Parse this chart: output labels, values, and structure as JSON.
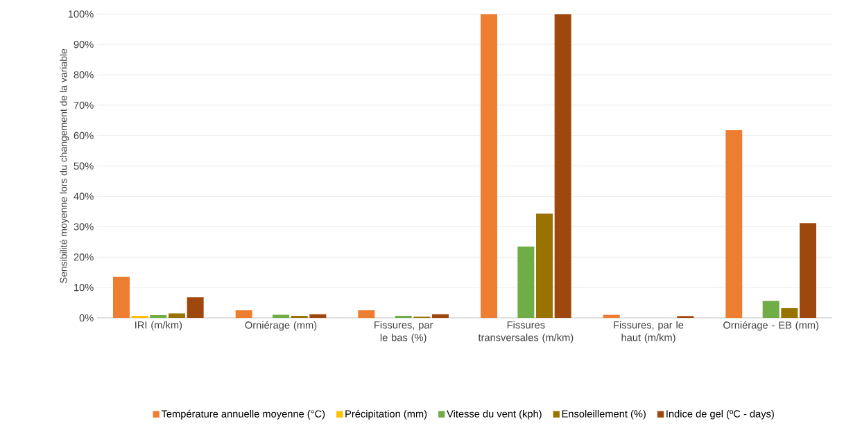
{
  "chart_data": {
    "type": "bar",
    "ylabel": "Sensibilité moyenne lors du changement de la variable",
    "categories": [
      "IRI (m/km)",
      "Orniérage  (mm)",
      "Fissures, par le bas (%)",
      "Fissures transversales (m/km)",
      "Fissures, par le haut (m/km)",
      "Orniérage - EB  (mm)"
    ],
    "series": [
      {
        "name": "Température annuelle moyenne (°C)",
        "color": "#ed7d31",
        "values": [
          13.5,
          2.5,
          2.5,
          100,
          1.0,
          61.8
        ]
      },
      {
        "name": "Précipitation (mm)",
        "color": "#ffc000",
        "values": [
          0.7,
          0,
          0,
          0,
          0,
          0
        ]
      },
      {
        "name": "Vitesse du vent (kph)",
        "color": "#70ad47",
        "values": [
          0.9,
          1.0,
          0.7,
          23.5,
          0,
          5.6
        ]
      },
      {
        "name": "Ensoleillement (%)",
        "color": "#997300",
        "values": [
          1.5,
          0.7,
          0.4,
          34.3,
          0,
          3.2
        ]
      },
      {
        "name": "Indice de gel (ºC - days)",
        "color": "#9e480e",
        "values": [
          6.8,
          1.2,
          1.2,
          100,
          0.6,
          31.2
        ]
      }
    ],
    "ylim": [
      0,
      100
    ],
    "yticks": [
      {
        "value": 0,
        "label": "0%"
      },
      {
        "value": 10,
        "label": "10%"
      },
      {
        "value": 20,
        "label": "20%"
      },
      {
        "value": 30,
        "label": "30%"
      },
      {
        "value": 40,
        "label": "40%"
      },
      {
        "value": 50,
        "label": "50%"
      },
      {
        "value": 60,
        "label": "60%"
      },
      {
        "value": 70,
        "label": "70%"
      },
      {
        "value": 80,
        "label": "80%"
      },
      {
        "value": 90,
        "label": "90%"
      },
      {
        "value": 100,
        "label": "100%"
      }
    ],
    "grid": "y",
    "legend": "bottom"
  }
}
